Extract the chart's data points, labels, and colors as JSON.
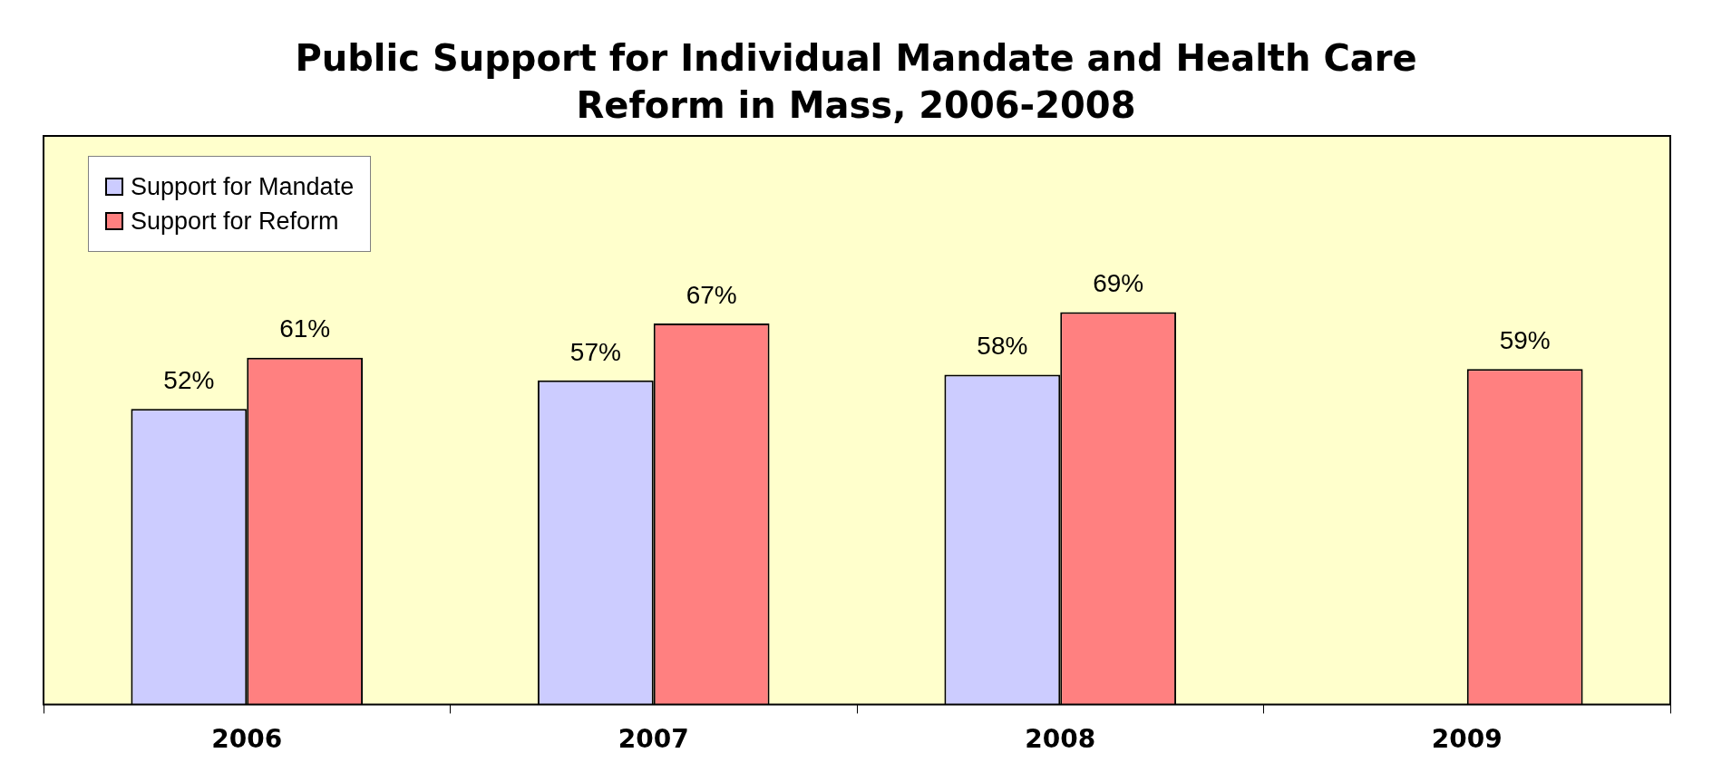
{
  "chart_data": {
    "type": "bar",
    "title": "Public Support for Individual Mandate and Health Care Reform in Mass, 2006-2008",
    "categories": [
      "2006",
      "2007",
      "2008",
      "2009"
    ],
    "series": [
      {
        "name": "Support for Mandate",
        "color": "#ccccff",
        "values": [
          52,
          57,
          58,
          null
        ],
        "value_labels": [
          "52%",
          "57%",
          "58%",
          null
        ]
      },
      {
        "name": "Support for Reform",
        "color": "#ff8080",
        "values": [
          61,
          67,
          69,
          59
        ],
        "value_labels": [
          "61%",
          "67%",
          "69%",
          "59%"
        ]
      }
    ],
    "ylim": [
      0,
      100
    ],
    "tick_labels": "x",
    "legend": "top left"
  }
}
